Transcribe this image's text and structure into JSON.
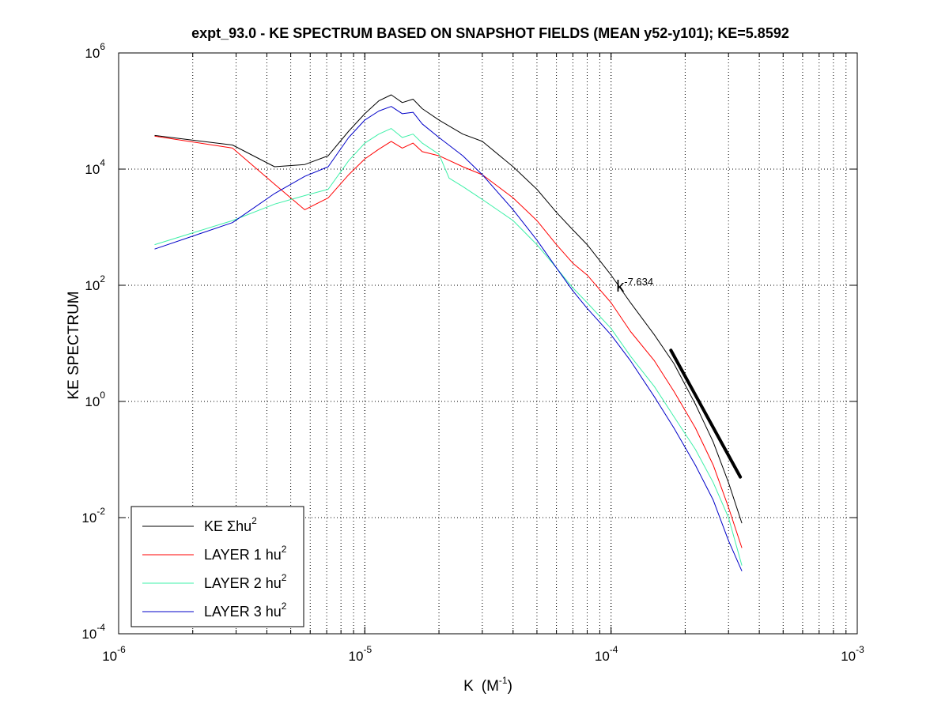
{
  "chart_data": {
    "type": "line",
    "title": "expt_93.0 - KE SPECTRUM BASED ON SNAPSHOT FIELDS (MEAN y52-y101); KE=5.8592",
    "xlabel": "K",
    "xlabel_unit": "(M",
    "xlabel_unit_exp": "-1",
    "xlabel_unit_close": ")",
    "ylabel": "KE SPECTRUM",
    "xscale": "log",
    "yscale": "log",
    "xlim": [
      1e-06,
      0.001
    ],
    "ylim": [
      0.0001,
      1000000.0
    ],
    "grid": "dotted",
    "x_ticks": [
      {
        "base": "10",
        "exp": "-6",
        "value": 1e-06
      },
      {
        "base": "10",
        "exp": "-5",
        "value": 1e-05
      },
      {
        "base": "10",
        "exp": "-4",
        "value": 0.0001
      },
      {
        "base": "10",
        "exp": "-3",
        "value": 0.001
      }
    ],
    "y_ticks": [
      {
        "base": "10",
        "exp": "-4",
        "value": 0.0001
      },
      {
        "base": "10",
        "exp": "-2",
        "value": 0.01
      },
      {
        "base": "10",
        "exp": "0",
        "value": 1
      },
      {
        "base": "10",
        "exp": "2",
        "value": 100
      },
      {
        "base": "10",
        "exp": "4",
        "value": 10000
      },
      {
        "base": "10",
        "exp": "6",
        "value": 1000000
      }
    ],
    "legend_position": "bottom-left",
    "series": [
      {
        "name": "KE Σhu",
        "name_sup": "2",
        "color": "#000000",
        "x": [
          1.4e-06,
          2.9e-06,
          4.3e-06,
          5.7e-06,
          7.1e-06,
          8.6e-06,
          1e-05,
          1.14e-05,
          1.28e-05,
          1.42e-05,
          1.57e-05,
          1.71e-05,
          2e-05,
          2.5e-05,
          3e-05,
          4e-05,
          5e-05,
          6e-05,
          7e-05,
          8e-05,
          0.0001,
          0.00012,
          0.00015,
          0.00018,
          0.00022,
          0.00026,
          0.0003,
          0.00034
        ],
        "y": [
          38000,
          26000,
          11000,
          12000,
          17000,
          45000,
          90000,
          150000,
          190000,
          140000,
          160000,
          110000,
          70000,
          40000,
          30000,
          11000,
          4500,
          1800,
          900,
          500,
          150,
          50,
          14,
          4.5,
          0.9,
          0.2,
          0.04,
          0.008
        ]
      },
      {
        "name": "LAYER 1 hu",
        "name_sup": "2",
        "color": "#ff0000",
        "x": [
          1.4e-06,
          2.9e-06,
          4.3e-06,
          5.7e-06,
          7.1e-06,
          8.6e-06,
          1e-05,
          1.14e-05,
          1.28e-05,
          1.42e-05,
          1.57e-05,
          1.71e-05,
          2e-05,
          2.5e-05,
          3e-05,
          4e-05,
          5e-05,
          6e-05,
          7e-05,
          8e-05,
          0.0001,
          0.00012,
          0.00015,
          0.00018,
          0.00022,
          0.00026,
          0.0003,
          0.00034
        ],
        "y": [
          37000,
          23000,
          5500,
          2000,
          3200,
          8000,
          15000,
          22000,
          30000,
          23000,
          28000,
          20000,
          17000,
          11000,
          8000,
          3200,
          1300,
          500,
          240,
          150,
          50,
          16,
          5,
          1.5,
          0.35,
          0.08,
          0.015,
          0.003
        ]
      },
      {
        "name": "LAYER 2 hu",
        "name_sup": "2",
        "color": "#3ef0a8",
        "x": [
          1.4e-06,
          2.9e-06,
          4.3e-06,
          5.7e-06,
          7.1e-06,
          8.6e-06,
          1e-05,
          1.14e-05,
          1.28e-05,
          1.42e-05,
          1.57e-05,
          1.71e-05,
          2e-05,
          2.2e-05,
          2.5e-05,
          3e-05,
          4e-05,
          5e-05,
          6e-05,
          7e-05,
          8e-05,
          0.0001,
          0.00012,
          0.00015,
          0.00018,
          0.00022,
          0.00026,
          0.0003,
          0.00034
        ],
        "y": [
          500,
          1300,
          2500,
          3500,
          4500,
          14000,
          28000,
          40000,
          50000,
          35000,
          40000,
          28000,
          18000,
          7000,
          5000,
          3000,
          1300,
          500,
          200,
          90,
          50,
          18,
          6,
          1.8,
          0.55,
          0.15,
          0.04,
          0.01,
          0.0015
        ]
      },
      {
        "name": "LAYER 3 hu",
        "name_sup": "2",
        "color": "#0000c8",
        "x": [
          1.4e-06,
          2.9e-06,
          4.3e-06,
          5.7e-06,
          7.1e-06,
          8.6e-06,
          1e-05,
          1.14e-05,
          1.28e-05,
          1.42e-05,
          1.57e-05,
          1.71e-05,
          2e-05,
          2.5e-05,
          3e-05,
          4e-05,
          5e-05,
          6e-05,
          7e-05,
          8e-05,
          0.0001,
          0.00012,
          0.00015,
          0.00018,
          0.00022,
          0.00026,
          0.0003,
          0.00034
        ],
        "y": [
          420,
          1200,
          3800,
          7500,
          11000,
          35000,
          70000,
          100000,
          120000,
          90000,
          95000,
          60000,
          35000,
          17000,
          8000,
          2000,
          600,
          200,
          80,
          40,
          14,
          5,
          1.2,
          0.35,
          0.08,
          0.02,
          0.004,
          0.0012
        ]
      }
    ],
    "fit_line": {
      "label": "k",
      "exponent": "-7.634",
      "color": "#000000",
      "x": [
        0.000175,
        0.000335
      ],
      "y": [
        7.6,
        0.05
      ],
      "label_x": 0.000105,
      "label_y": 100
    }
  }
}
